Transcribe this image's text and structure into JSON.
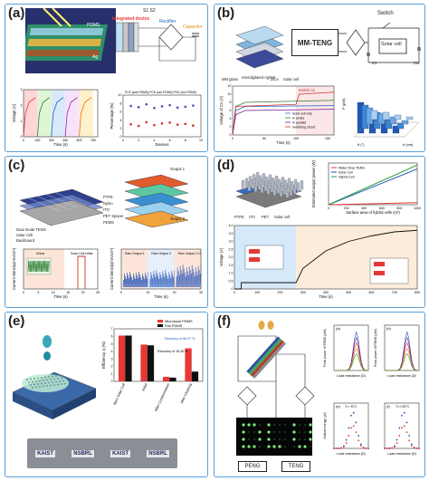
{
  "panel_a": {
    "label": "(a)",
    "photo_labels": {
      "pdms": "PDMS",
      "ag": "Ag"
    },
    "schematic": {
      "integrated_device": "Integrated device",
      "layer_pdms": "PDMS",
      "layer_al": "Al",
      "layer_si": "Si",
      "layer_ag": "Ag",
      "switch": "S1  S2",
      "rectifier": "Rectifier",
      "capacitor": "Capacitor"
    },
    "chart_left": {
      "ylabel": "Voltage (V)",
      "xlabel": "Time (s)",
      "xticks": [
        "0",
        "150",
        "300",
        "450",
        "600",
        "750"
      ],
      "yticks": [
        "0",
        "1",
        "2",
        "3"
      ]
    },
    "chart_right": {
      "legend": "PCE (with PDMS)-PCE (w/o PDMS)  PCE (w/o PDMS)",
      "ylabel": "Percentage (%)",
      "xlabel": "Devices",
      "xticks": [
        "0",
        "2",
        "4",
        "6",
        "8",
        "10"
      ],
      "yticks": [
        "0",
        "2",
        "4",
        "6",
        "8",
        "10"
      ]
    }
  },
  "panel_b": {
    "label": "(b)",
    "mmteng": "MM-TENG",
    "switch": "Switch",
    "solar_cell": "Solar cell",
    "c1": "C1",
    "cm": "CM",
    "layer_labels": [
      "MM glass",
      "Interdigitated AgNW",
      "DCA",
      "Solar cell"
    ],
    "chart_left": {
      "ylabel": "Voltage of C1 (V)",
      "xlabel": "Time (s)",
      "annotation": "Switch on",
      "legend": [
        "Solar cell only",
        "In series",
        "In parallel",
        "Switching circuit"
      ],
      "xticks": [
        "0",
        "50",
        "100",
        "150"
      ],
      "yticks": [
        "0",
        "2",
        "4",
        "6",
        "8",
        "10",
        "12"
      ]
    },
    "chart_right": {
      "zlabel": "P (µW)",
      "xlabel": "θ (°)",
      "ylabel": "h (cm)"
    }
  },
  "panel_c": {
    "label": "(c)",
    "labels": {
      "output1": "Output 1",
      "output2": "Output 2",
      "dual_mode": "Dual mode TENG",
      "solar_cell": "Solar Cell",
      "backboard": "Backboard"
    },
    "legend": [
      "PTFE",
      "Nylon",
      "ITO",
      "PET Spacer",
      "PDMS"
    ],
    "chart_left": {
      "ylabel": "Current Density(mA/cm²)",
      "xlabel": "Time (s)",
      "labels": [
        "Wind",
        "Solar Cell Initial"
      ],
      "xticks": [
        "0",
        "5",
        "10",
        "15",
        "20",
        "25"
      ]
    },
    "chart_right": {
      "ylabel": "Current Density(mA/cm²)",
      "xlabel": "Time (s)",
      "labels": [
        "Rain Output 1",
        "Rain Output 2",
        "Rain Output 1+2"
      ],
      "xticks": [
        "0",
        "10",
        "20",
        "30"
      ]
    }
  },
  "panel_d": {
    "label": "(d)",
    "legend_device": [
      "PTFE",
      "ITO",
      "PET",
      "Solar cell"
    ],
    "chart_top": {
      "legend": [
        "Water Drop TENG",
        "Solar Cell",
        "Hybrid Cell"
      ],
      "ylabel": "Estimated output power (W)",
      "xlabel": "Surface area of hybrid cells (m²)",
      "xticks": [
        "0",
        "200",
        "400",
        "600",
        "800",
        "1000"
      ]
    },
    "chart_bottom": {
      "ylabel": "Voltage (V)",
      "xlabel": "Time (s)",
      "xticks": [
        "0",
        "100",
        "200",
        "300",
        "400",
        "500",
        "600",
        "700",
        "800"
      ],
      "yticks": [
        "0",
        "0.5",
        "1.0",
        "1.5",
        "2.0",
        "2.5",
        "3.0",
        "3.5",
        "4.0"
      ]
    }
  },
  "panel_e": {
    "label": "(e)",
    "legend": [
      "Microbowl PDMS",
      "Flat PDMS"
    ],
    "ylabel": "Efficiency, η (%)",
    "annotations": [
      "Recovery of 86.27 %",
      "Recovery of 15.45 %"
    ],
    "categories": [
      "Bare Solar Cell",
      "Initial",
      "After Contamination",
      "After Cleaning"
    ],
    "photo_text": [
      "KAIST",
      "NSBRL"
    ]
  },
  "panel_f": {
    "label": "(f)",
    "labels": {
      "peng": "PENG",
      "teng": "TENG"
    },
    "subplots": [
      {
        "id": "(a)",
        "ylabel": "Peak power of TENG (µW)",
        "xlabel": "Load resistance (Ω)"
      },
      {
        "id": "(b)",
        "ylabel": "Peak power of PENG (µW)",
        "xlabel": "Load resistance (Ω)"
      },
      {
        "id": "(e)",
        "title": "T=−5°C",
        "ylabel": "Output energy (µJ)",
        "xlabel": "Load resistance (Ω)"
      },
      {
        "id": "(f)",
        "title": "T=+25°C",
        "xlabel": "Load resistance (Ω)"
      }
    ]
  },
  "colors": {
    "border": "#5aa0d8",
    "red": "#e53935",
    "blue": "#1f4fb7",
    "green": "#1e9c3c",
    "navy": "#263a8a"
  },
  "chart_data": [
    {
      "type": "line",
      "title": "",
      "xlabel": "Time (s)",
      "ylabel": "Voltage (V)",
      "xlim": [
        0,
        800
      ],
      "ylim": [
        0,
        3
      ],
      "series": [
        {
          "values": [
            [
              0,
              0
            ],
            [
              20,
              1.5
            ],
            [
              60,
              2.2
            ],
            [
              130,
              2.5
            ]
          ]
        },
        {
          "values": [
            [
              150,
              0
            ],
            [
              170,
              1.5
            ],
            [
              210,
              2.2
            ],
            [
              280,
              2.5
            ]
          ]
        },
        {
          "values": [
            [
              300,
              0
            ],
            [
              320,
              1.5
            ],
            [
              360,
              2.2
            ],
            [
              430,
              2.5
            ]
          ]
        },
        {
          "values": [
            [
              450,
              0
            ],
            [
              470,
              1.5
            ],
            [
              510,
              2.2
            ],
            [
              580,
              2.5
            ]
          ]
        },
        {
          "values": [
            [
              600,
              0
            ],
            [
              620,
              1.5
            ],
            [
              660,
              2.2
            ],
            [
              730,
              2.5
            ]
          ]
        }
      ]
    },
    {
      "type": "scatter",
      "xlabel": "Devices",
      "ylabel": "Percentage (%)",
      "xlim": [
        0,
        10
      ],
      "ylim": [
        0,
        10
      ],
      "series": [
        {
          "values": [
            [
              1,
              7.4
            ],
            [
              2,
              7.1
            ],
            [
              3,
              7.8
            ],
            [
              4,
              6.9
            ],
            [
              5,
              7.3
            ],
            [
              6,
              7.6
            ],
            [
              7,
              7.0
            ],
            [
              8,
              7.2
            ],
            [
              9,
              7.5
            ]
          ]
        },
        {
          "values": [
            [
              1,
              3.0
            ],
            [
              2,
              2.6
            ],
            [
              3,
              3.5
            ],
            [
              4,
              2.8
            ],
            [
              5,
              3.2
            ],
            [
              6,
              3.4
            ],
            [
              7,
              2.9
            ],
            [
              8,
              3.1
            ],
            [
              9,
              2.7
            ]
          ]
        }
      ]
    },
    {
      "type": "line",
      "xlabel": "Time (s)",
      "ylabel": "Voltage of C1 (V)",
      "xlim": [
        0,
        160
      ],
      "ylim": [
        0,
        12
      ],
      "series": [
        {
          "name": "Solar cell only",
          "values": [
            [
              0,
              0
            ],
            [
              5,
              6
            ],
            [
              20,
              7
            ],
            [
              160,
              7.2
            ]
          ]
        },
        {
          "name": "In series",
          "values": [
            [
              0,
              0
            ],
            [
              5,
              7
            ],
            [
              20,
              8
            ],
            [
              160,
              8.5
            ]
          ]
        },
        {
          "name": "In parallel",
          "values": [
            [
              0,
              0
            ],
            [
              5,
              5
            ],
            [
              20,
              6
            ],
            [
              160,
              6.3
            ]
          ]
        },
        {
          "name": "Switching circuit",
          "values": [
            [
              0,
              0
            ],
            [
              5,
              7
            ],
            [
              100,
              7.5
            ],
            [
              105,
              10
            ],
            [
              160,
              10.5
            ]
          ]
        }
      ]
    },
    {
      "type": "line",
      "xlabel": "Surface area of hybrid cells (m²)",
      "ylabel": "Estimated output power (W)",
      "xlim": [
        0,
        1000
      ],
      "series": [
        {
          "name": "Water Drop TENG",
          "values": [
            [
              0,
              0
            ],
            [
              1000,
              0.05
            ]
          ]
        },
        {
          "name": "Solar Cell",
          "values": [
            [
              0,
              0
            ],
            [
              1000,
              0.9
            ]
          ]
        },
        {
          "name": "Hybrid Cell",
          "values": [
            [
              0,
              0
            ],
            [
              1000,
              1.0
            ]
          ]
        }
      ]
    },
    {
      "type": "line",
      "xlabel": "Time (s)",
      "ylabel": "Voltage (V)",
      "xlim": [
        0,
        800
      ],
      "ylim": [
        0,
        4
      ],
      "series": [
        {
          "values": [
            [
              0,
              0
            ],
            [
              30,
              0
            ],
            [
              30,
              0.4
            ],
            [
              270,
              0.4
            ],
            [
              300,
              1.3
            ],
            [
              400,
              2.4
            ],
            [
              500,
              3.0
            ],
            [
              600,
              3.35
            ],
            [
              700,
              3.6
            ],
            [
              800,
              3.7
            ]
          ]
        }
      ]
    },
    {
      "type": "bar",
      "ylabel": "Efficiency, η (%)",
      "categories": [
        "Bare Solar Cell",
        "Initial",
        "After Contamination",
        "After Cleaning"
      ],
      "ylim": [
        0,
        7
      ],
      "series": [
        {
          "name": "Microbowl PDMS",
          "values": [
            6.1,
            4.9,
            0.6,
            4.4
          ]
        },
        {
          "name": "Flat PDMS",
          "values": [
            6.1,
            4.8,
            0.5,
            1.3
          ]
        }
      ]
    }
  ]
}
